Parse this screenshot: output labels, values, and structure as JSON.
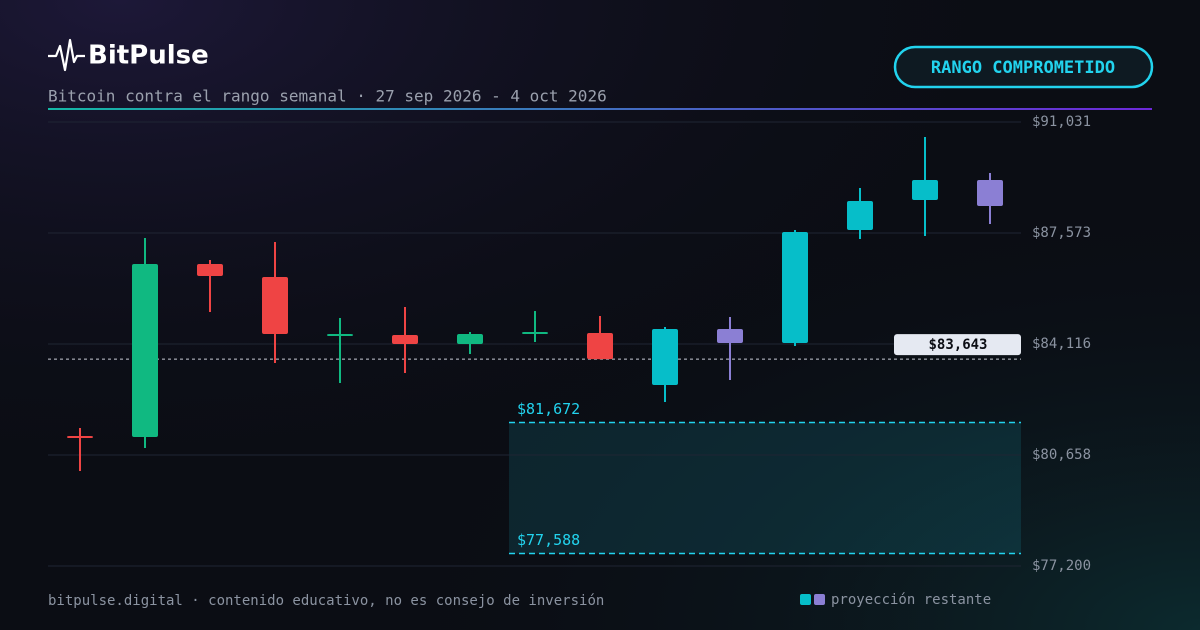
{
  "brand": "BitPulse",
  "badge": "RANGO COMPROMETIDO",
  "footer": "bitpulse.digital · contenido educativo, no es consejo de inversión",
  "chart_data": {
    "type": "candlestick",
    "subtitle": "Bitcoin contra el rango semanal · 27 sep 2026 - 4 oct 2026",
    "categories": [
      null,
      null,
      null,
      null,
      null,
      null,
      null,
      null,
      null,
      null,
      null,
      null,
      null,
      null,
      null
    ],
    "open": [
      81250,
      81218,
      86608,
      86203,
      84365,
      84396,
      84116,
      84427,
      84458,
      82838,
      84583,
      84147,
      87667,
      88601,
      89224
    ],
    "high": [
      81499,
      87418,
      86732,
      87293,
      84925,
      85268,
      84489,
      85143,
      84988,
      84645,
      84957,
      87667,
      88975,
      90564,
      89442
    ],
    "low": [
      80159,
      80876,
      85112,
      83524,
      82901,
      83212,
      83804,
      84178,
      83643,
      82309,
      82994,
      84053,
      87386,
      87480,
      87854
    ],
    "close": [
      81187,
      86608,
      86234,
      84427,
      84427,
      84116,
      84427,
      84489,
      83643,
      84583,
      84147,
      87604,
      88570,
      89224,
      88414
    ],
    "colors": [
      "#ef4444",
      "#10b981",
      "#ef4444",
      "#ef4444",
      "#10b981",
      "#ef4444",
      "#10b981",
      "#10b981",
      "#ef4444",
      "#06bec9",
      "#8b7fd4",
      "#06bec9",
      "#06bec9",
      "#06bec9",
      "#8b7fd4"
    ],
    "ylim": [
      77200,
      91031
    ],
    "yticks": [
      {
        "value": 77200,
        "label": "$77,200"
      },
      {
        "value": 80658,
        "label": "$80,658"
      },
      {
        "value": 84116,
        "label": "$84,116"
      },
      {
        "value": 87573,
        "label": "$87,573"
      },
      {
        "value": 91031,
        "label": "$91,031"
      }
    ],
    "grid": true,
    "current": {
      "value": 83643,
      "label": "$83,643"
    },
    "range": {
      "values": [
        81672,
        77588
      ],
      "value_labels": [
        "$81,672",
        "$77,588"
      ],
      "color": "#22d3ee"
    },
    "legend": {
      "label": "proyección restante",
      "colors": [
        "#06bec9",
        "#8b7fd4"
      ]
    }
  }
}
